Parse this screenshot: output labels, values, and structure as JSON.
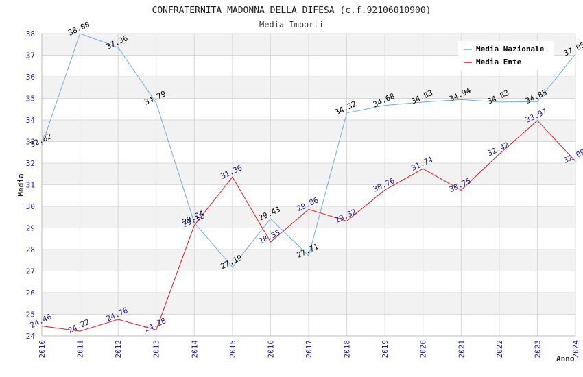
{
  "chart_data": {
    "type": "line",
    "title": "CONFRATERNITA MADONNA DELLA DIFESA (c.f.92106010900)",
    "subtitle": "Media Importi",
    "xlabel": "Anno",
    "ylabel": "Media",
    "categories": [
      "2010",
      "2011",
      "2012",
      "2013",
      "2014",
      "2015",
      "2016",
      "2017",
      "2018",
      "2019",
      "2020",
      "2021",
      "2022",
      "2023",
      "2024"
    ],
    "ylim": [
      24,
      38
    ],
    "yticks": [
      "24",
      "25",
      "26",
      "27",
      "28",
      "29",
      "30",
      "31",
      "32",
      "33",
      "34",
      "35",
      "36",
      "37",
      "38"
    ],
    "grid": true,
    "legend_position": "top-right",
    "series": [
      {
        "name": "Media Nazionale",
        "color": "#6aaee8",
        "label_color": "#000000",
        "values": [
          32.82,
          38.0,
          37.36,
          34.79,
          29.24,
          27.19,
          29.43,
          27.71,
          34.32,
          34.68,
          34.83,
          34.94,
          34.83,
          34.85,
          37.05
        ],
        "labels": [
          "32.82",
          "38.00",
          "37.36",
          "34.79",
          "29.24",
          "27.19",
          "29.43",
          "27.71",
          "34.32",
          "34.68",
          "34.83",
          "34.94",
          "34.83",
          "34.85",
          "37.05"
        ]
      },
      {
        "name": "Media Ente",
        "color": "#e8141c",
        "label_color": "#1a1a8c",
        "values": [
          24.46,
          24.22,
          24.76,
          24.28,
          29.12,
          31.36,
          28.35,
          29.86,
          29.32,
          30.76,
          31.74,
          30.75,
          32.42,
          33.97,
          32.09
        ],
        "labels": [
          "24.46",
          "24.22",
          "24.76",
          "24.28",
          "29.12",
          "31.36",
          "28.35",
          "29.86",
          "29.32",
          "30.76",
          "31.74",
          "30.75",
          "32.42",
          "33.97",
          "32.09"
        ]
      }
    ],
    "colors": {
      "axis_tick_text": "#1a1ac8",
      "band_light": "#f2f2f2",
      "band_white": "#ffffff",
      "grid": "#d8d8d8"
    }
  }
}
